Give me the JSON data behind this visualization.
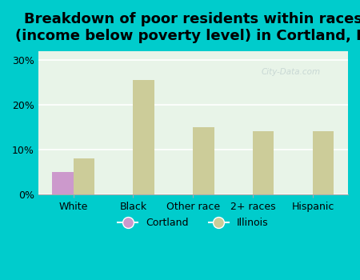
{
  "title": "Breakdown of poor residents within races\n(income below poverty level) in Cortland, IL",
  "categories": [
    "White",
    "Black",
    "Other race",
    "2+ races",
    "Hispanic"
  ],
  "cortland_values": [
    5.0,
    0,
    0,
    0,
    0
  ],
  "illinois_values": [
    8.0,
    25.5,
    15.0,
    14.0,
    14.0
  ],
  "cortland_color": "#cc99cc",
  "illinois_color": "#cccc99",
  "bg_outer": "#00cccc",
  "bg_inner": "#e8f4e8",
  "yticks": [
    0,
    10,
    20,
    30
  ],
  "ylim": [
    0,
    32
  ],
  "bar_width": 0.35,
  "title_fontsize": 13,
  "tick_fontsize": 9,
  "legend_fontsize": 9,
  "watermark": "City-Data.com"
}
